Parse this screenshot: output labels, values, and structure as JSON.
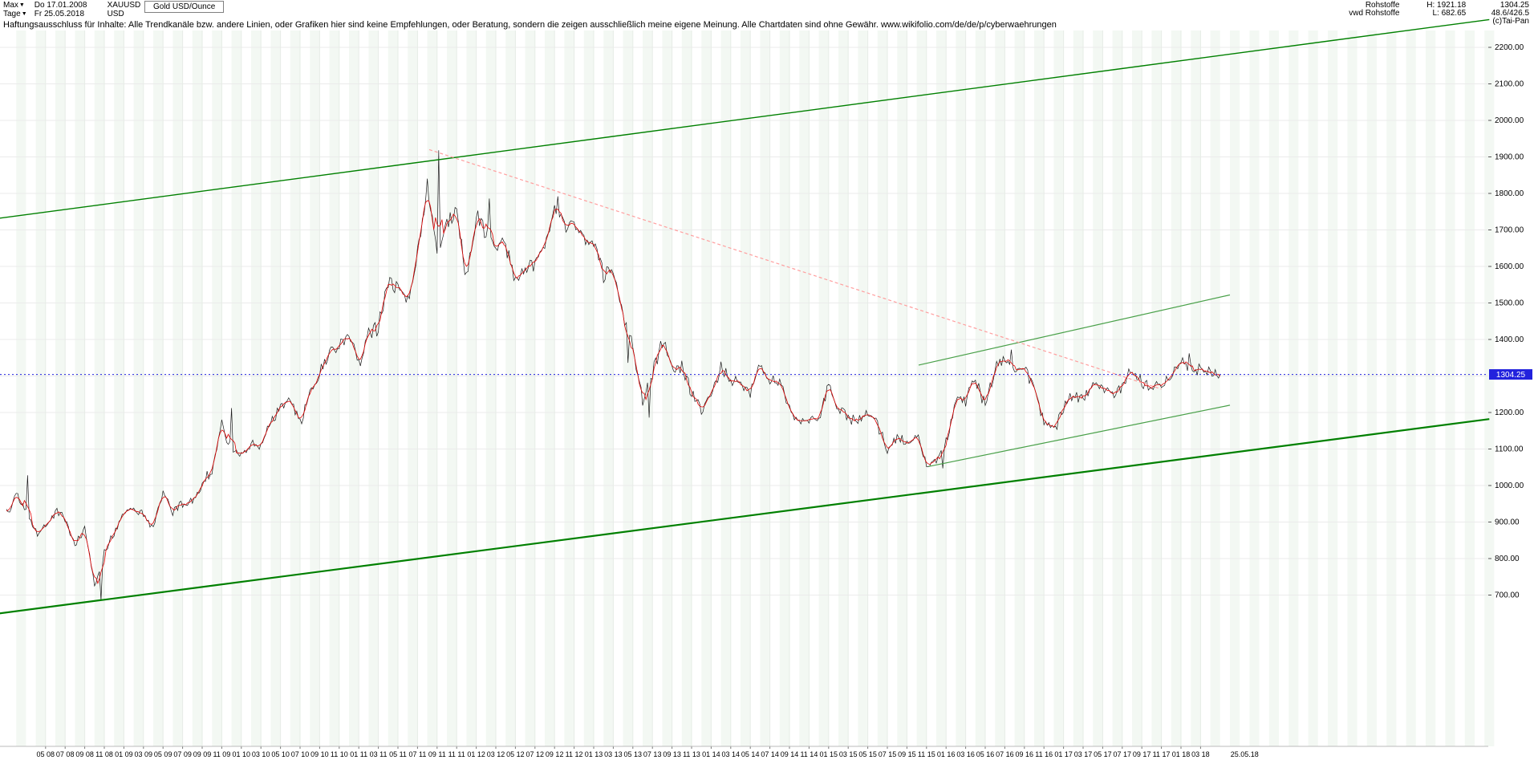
{
  "header": {
    "range_selector": "Max",
    "period_selector": "Tage",
    "start_date": "Do 17.01.2008",
    "end_date": "Fr 25.05.2018",
    "symbol": "XAUUSD",
    "currency": "USD",
    "instrument": "Gold USD/Ounce",
    "right": {
      "line1_label": "Rohstoffe",
      "line1_high": "H: 1921.18",
      "line1_value": "1304.25",
      "line2_label": "vwd Rohstoffe",
      "line2_low": "L: 682.65",
      "line2_value": "48.6/426.5",
      "copyright": "(c)Tai-Pan"
    }
  },
  "disclaimer": "Haftungsausschluss für Inhalte: Alle Trendkanäle bzw. andere Linien, oder Grafiken hier sind keine Empfehlungen, oder Beratung, sondern die zeigen ausschließlich meine eigene Meinung. Alle Chartdaten sind ohne Gewähr.  www.wikifolio.com/de/de/p/cyberwaehrungen",
  "chart_data": {
    "type": "line",
    "title": "Gold USD/Ounce",
    "symbol": "XAUUSD",
    "period": {
      "from": "Do 17.01.2008",
      "to": "Fr 25.05.2018"
    },
    "high": 1921.18,
    "low": 682.65,
    "last": 1304.25,
    "start_month": "2008-01",
    "monthly_close": [
      925,
      972,
      934,
      871,
      886,
      928,
      913,
      833,
      885,
      724,
      815,
      870,
      927,
      940,
      917,
      888,
      977,
      930,
      954,
      953,
      1007,
      1040,
      1175,
      1096,
      1081,
      1116,
      1114,
      1180,
      1214,
      1244,
      1170,
      1248,
      1309,
      1359,
      1385,
      1421,
      1333,
      1411,
      1432,
      1563,
      1537,
      1500,
      1628,
      1826,
      1622,
      1722,
      1746,
      1566,
      1737,
      1696,
      1662,
      1664,
      1558,
      1598,
      1614,
      1648,
      1776,
      1719,
      1714,
      1676,
      1660,
      1580,
      1597,
      1469,
      1388,
      1234,
      1312,
      1394,
      1328,
      1324,
      1253,
      1205,
      1244,
      1326,
      1284,
      1288,
      1250,
      1327,
      1282,
      1287,
      1208,
      1173,
      1175,
      1184,
      1283,
      1213,
      1184,
      1184,
      1190,
      1171,
      1095,
      1134,
      1115,
      1142,
      1064,
      1060,
      1118,
      1234,
      1232,
      1293,
      1215,
      1322,
      1351,
      1309,
      1316,
      1272,
      1173,
      1152,
      1211,
      1248,
      1244,
      1268,
      1269,
      1242,
      1269,
      1321,
      1280,
      1271,
      1273,
      1303,
      1345,
      1318,
      1325,
      1315,
      1304.25
    ],
    "extremes": [
      {
        "m": 2.2,
        "v": 1028
      },
      {
        "m": 9.6,
        "v": 686
      },
      {
        "m": 23.0,
        "v": 1212
      },
      {
        "m": 44.2,
        "v": 1918
      },
      {
        "m": 49.4,
        "v": 1786
      },
      {
        "m": 56.3,
        "v": 1792
      },
      {
        "m": 63.5,
        "v": 1336
      },
      {
        "m": 65.7,
        "v": 1186
      },
      {
        "m": 95.6,
        "v": 1047
      },
      {
        "m": 102.6,
        "v": 1372
      },
      {
        "m": 120.8,
        "v": 1362
      }
    ],
    "y_axis": {
      "min": 700,
      "max": 2200,
      "step": 100,
      "labels": [
        {
          "v": 2200,
          "t": "2200.00"
        },
        {
          "v": 2100,
          "t": "2100.00"
        },
        {
          "v": 2000,
          "t": "2000.00"
        },
        {
          "v": 1900,
          "t": "1900.00"
        },
        {
          "v": 1800,
          "t": "1800.00"
        },
        {
          "v": 1700,
          "t": "1700.00"
        },
        {
          "v": 1600,
          "t": "1600.00"
        },
        {
          "v": 1500,
          "t": "1500.00"
        },
        {
          "v": 1400,
          "t": "1400.00"
        },
        {
          "v": 1200,
          "t": "1200.00"
        },
        {
          "v": 1100,
          "t": "1100.00"
        },
        {
          "v": 1000,
          "t": "1000.00"
        },
        {
          "v": 900,
          "t": "900.00"
        },
        {
          "v": 800,
          "t": "800.00"
        },
        {
          "v": 700,
          "t": "700.00"
        }
      ]
    },
    "x_ticks": [
      "05 08",
      "07 08",
      "09 08",
      "11 08",
      "01 09",
      "03 09",
      "05 09",
      "07 09",
      "09 09",
      "11 09",
      "01 10",
      "03 10",
      "05 10",
      "07 10",
      "09 10",
      "11 10",
      "01 11",
      "03 11",
      "05 11",
      "07 11",
      "09 11",
      "11 11",
      "01 12",
      "03 12",
      "05 12",
      "07 12",
      "09 12",
      "11 12",
      "01 13",
      "03 13",
      "05 13",
      "07 13",
      "09 13",
      "11 13",
      "01 14",
      "03 14",
      "05 14",
      "07 14",
      "09 14",
      "11 14",
      "01 15",
      "03 15",
      "05 15",
      "07 15",
      "09 15",
      "11 15",
      "01 16",
      "03 16",
      "05 16",
      "07 16",
      "09 16",
      "11 16",
      "01 17",
      "03 17",
      "05 17",
      "07 17",
      "09 17",
      "11 17",
      "01 18",
      "03 18"
    ],
    "x_end_label": "25.05.18",
    "trendlines": [
      {
        "name": "upper-channel-line",
        "color": "#008000",
        "width": 1.4,
        "dash": "",
        "m1": -0.7,
        "p1": 1732,
        "m2": 151.5,
        "p2": 2276
      },
      {
        "name": "lower-channel-line",
        "color": "#008000",
        "width": 2.2,
        "dash": "",
        "m1": -0.7,
        "p1": 650,
        "m2": 151.5,
        "p2": 1182
      },
      {
        "name": "inner-upper-trendline",
        "color": "#49a049",
        "width": 1.2,
        "dash": "",
        "m1": 93.2,
        "p1": 1330,
        "m2": 125.0,
        "p2": 1522
      },
      {
        "name": "inner-lower-trendline",
        "color": "#49a049",
        "width": 1.2,
        "dash": "",
        "m1": 94.2,
        "p1": 1052,
        "m2": 125.0,
        "p2": 1220
      },
      {
        "name": "downtrend-line",
        "color": "#ff9e9e",
        "width": 1.2,
        "dash": "4 3",
        "m1": 43.2,
        "p1": 1920,
        "m2": 118.0,
        "p2": 1264
      }
    ],
    "last_price_line": {
      "value": 1304.25,
      "label": "1304.25",
      "color": "#2222dd"
    },
    "colors": {
      "stripe": "#f3f8f3",
      "grid_h": "#ebebeb",
      "grid_v": "#e6ece6",
      "series": "#1a1a1a",
      "close_line": "#e00000"
    }
  }
}
